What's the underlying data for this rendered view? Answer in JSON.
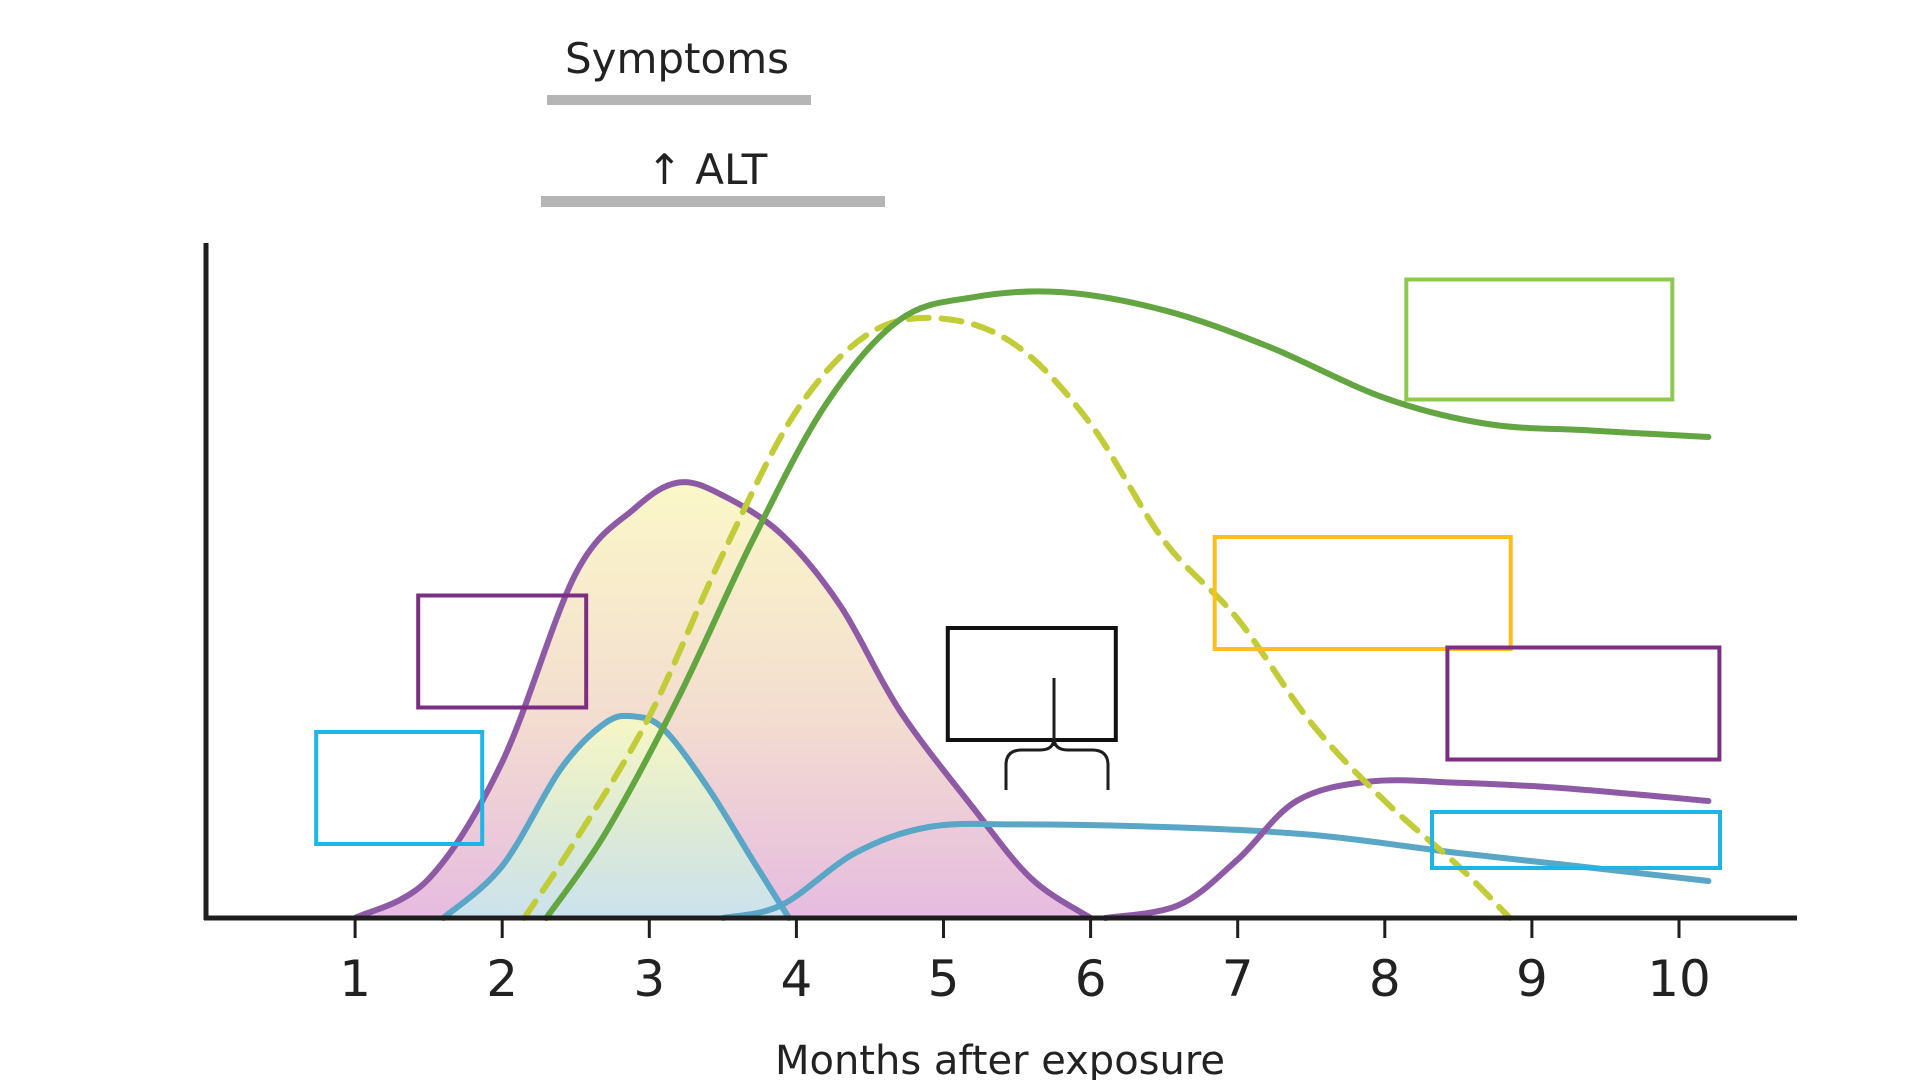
{
  "chart_data": {
    "type": "line",
    "title": "",
    "xlabel": "Months after exposure",
    "ylabel": "",
    "x_ticks": [
      1,
      2,
      3,
      4,
      5,
      6,
      7,
      8,
      9,
      10
    ],
    "xlim": [
      0,
      10.8
    ],
    "ylim": [
      0,
      1
    ],
    "grid": false,
    "legend": "none",
    "annotations": [
      {
        "label": "Symptoms",
        "x_range": [
          2.3,
          4.1
        ],
        "color": "#b5b5b5"
      },
      {
        "label": "↑ ALT",
        "x_range": [
          2.25,
          4.6
        ],
        "color": "#b5b5b5"
      }
    ],
    "series": [
      {
        "color": "#8e5aa6",
        "fill": "gradient",
        "style": "solid",
        "points": [
          [
            1.0,
            0.0
          ],
          [
            1.5,
            0.06
          ],
          [
            2.0,
            0.24
          ],
          [
            2.5,
            0.53
          ],
          [
            2.9,
            0.63
          ],
          [
            3.2,
            0.67
          ],
          [
            3.5,
            0.65
          ],
          [
            3.9,
            0.59
          ],
          [
            4.3,
            0.48
          ],
          [
            4.7,
            0.32
          ],
          [
            5.2,
            0.17
          ],
          [
            5.6,
            0.06
          ],
          [
            6.0,
            0.0
          ]
        ]
      },
      {
        "color": "#5aa6c6",
        "fill": "gradient",
        "style": "solid",
        "points": [
          [
            1.6,
            0.0
          ],
          [
            2.0,
            0.08
          ],
          [
            2.4,
            0.23
          ],
          [
            2.7,
            0.3
          ],
          [
            2.9,
            0.31
          ],
          [
            3.1,
            0.29
          ],
          [
            3.4,
            0.2
          ],
          [
            3.7,
            0.09
          ],
          [
            3.95,
            0.0
          ]
        ]
      },
      {
        "color": "#5aa6c6",
        "fill": "none",
        "style": "solid",
        "points": [
          [
            3.5,
            0.0
          ],
          [
            3.9,
            0.02
          ],
          [
            4.4,
            0.1
          ],
          [
            4.9,
            0.14
          ],
          [
            5.5,
            0.144
          ],
          [
            6.5,
            0.14
          ],
          [
            7.5,
            0.128
          ],
          [
            8.5,
            0.1
          ],
          [
            9.3,
            0.08
          ],
          [
            10.2,
            0.057
          ]
        ]
      },
      {
        "color": "#8e5aa6",
        "fill": "none",
        "style": "solid",
        "points": [
          [
            6.1,
            0.0
          ],
          [
            6.6,
            0.02
          ],
          [
            7.0,
            0.09
          ],
          [
            7.4,
            0.18
          ],
          [
            7.9,
            0.21
          ],
          [
            8.5,
            0.208
          ],
          [
            9.2,
            0.2
          ],
          [
            10.2,
            0.18
          ]
        ]
      },
      {
        "color": "#c2cc38",
        "fill": "none",
        "style": "dashed",
        "points": [
          [
            2.15,
            0.0
          ],
          [
            2.5,
            0.12
          ],
          [
            3.0,
            0.31
          ],
          [
            3.5,
            0.56
          ],
          [
            4.0,
            0.78
          ],
          [
            4.5,
            0.9
          ],
          [
            5.0,
            0.922
          ],
          [
            5.5,
            0.88
          ],
          [
            6.0,
            0.76
          ],
          [
            6.5,
            0.58
          ],
          [
            7.0,
            0.46
          ],
          [
            7.5,
            0.3
          ],
          [
            8.0,
            0.18
          ],
          [
            8.5,
            0.08
          ],
          [
            8.85,
            0.0
          ]
        ]
      },
      {
        "color": "#63a540",
        "fill": "none",
        "style": "solid",
        "points": [
          [
            2.3,
            0.0
          ],
          [
            2.7,
            0.13
          ],
          [
            3.2,
            0.34
          ],
          [
            3.7,
            0.58
          ],
          [
            4.2,
            0.79
          ],
          [
            4.7,
            0.92
          ],
          [
            5.2,
            0.955
          ],
          [
            5.8,
            0.963
          ],
          [
            6.5,
            0.935
          ],
          [
            7.2,
            0.88
          ],
          [
            8.0,
            0.8
          ],
          [
            8.7,
            0.76
          ],
          [
            9.4,
            0.75
          ],
          [
            10.2,
            0.74
          ]
        ]
      }
    ],
    "label_boxes": [
      {
        "color": "#7b2e84",
        "x": 2.0,
        "y": 0.41,
        "text": ""
      },
      {
        "color": "#1fb4e6",
        "x": 1.3,
        "y": 0.2,
        "text": ""
      },
      {
        "color": "#111111",
        "x": 5.6,
        "y": 0.36,
        "text": ""
      },
      {
        "color": "#ffbf1a",
        "x": 7.85,
        "y": 0.5,
        "text": ""
      },
      {
        "color": "#8dc850",
        "x": 9.05,
        "y": 0.89,
        "text": ""
      },
      {
        "color": "#7b2e84",
        "x": 9.35,
        "y": 0.33,
        "text": ""
      },
      {
        "color": "#1fb4e6",
        "x": 9.3,
        "y": 0.12,
        "text": ""
      }
    ]
  }
}
